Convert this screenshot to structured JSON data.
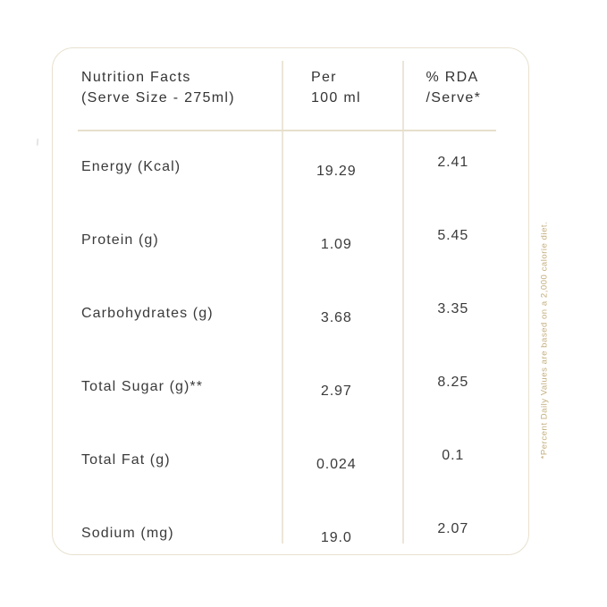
{
  "table": {
    "header": {
      "col1_line1": "Nutrition Facts",
      "col1_line2": "(Serve Size - 275ml)",
      "col2_line1": "Per",
      "col2_line2": "100 ml",
      "col3_line1": "% RDA",
      "col3_line2": "/Serve*"
    },
    "rows": [
      {
        "label": "Energy (Kcal)",
        "per_100ml": "19.29",
        "rda_per_serve": "2.41"
      },
      {
        "label": "Protein (g)",
        "per_100ml": "1.09",
        "rda_per_serve": "5.45"
      },
      {
        "label": "Carbohydrates (g)",
        "per_100ml": "3.68",
        "rda_per_serve": "3.35"
      },
      {
        "label": "Total Sugar (g)**",
        "per_100ml": "2.97",
        "rda_per_serve": "8.25"
      },
      {
        "label": "Total Fat (g)",
        "per_100ml": "0.024",
        "rda_per_serve": "0.1"
      },
      {
        "label": "Sodium (mg)",
        "per_100ml": "19.0",
        "rda_per_serve": "2.07"
      }
    ]
  },
  "footnote": "*Percent Daily Values are based on a  2,000 calorie diet.",
  "colors": {
    "card_border": "#e8e1cf",
    "divider": "#ece6d8",
    "header_rule": "#e7dfcc",
    "text": "#3a3a3a",
    "footnote_text": "#c3ad7a",
    "background": "#ffffff"
  }
}
